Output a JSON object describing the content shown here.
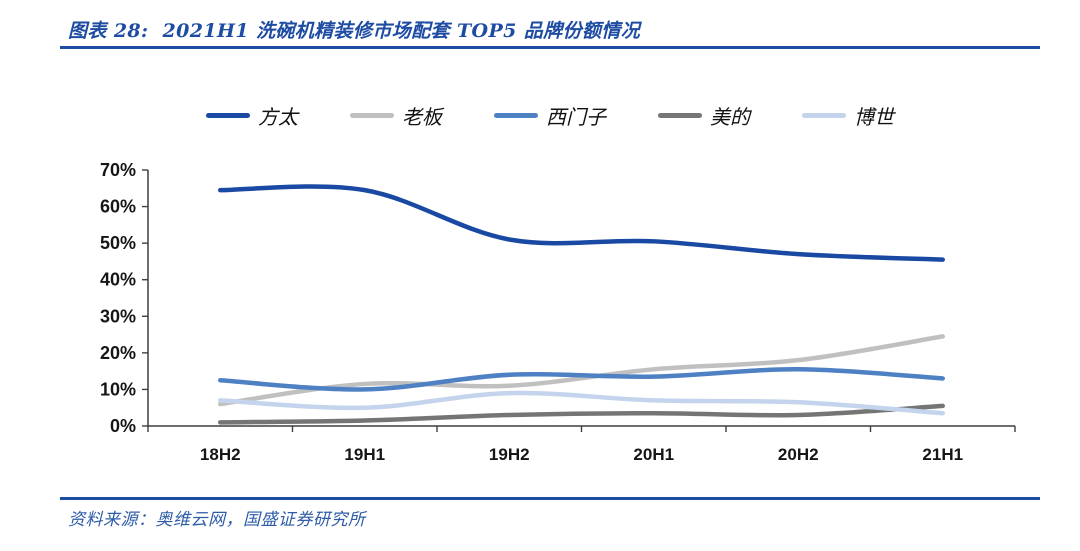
{
  "figure": {
    "label": "图表 28:",
    "title": "2021H1 洗碗机精装修市场配套 TOP5 品牌份额情况"
  },
  "footer": {
    "source": "资料来源：奥维云网，国盛证券研究所"
  },
  "colors": {
    "accent_navy": "#1F4CA3",
    "axis_line": "#3F3F3F",
    "tick_text": "#161616",
    "source_text": "#2E5CA8"
  },
  "chart_data": {
    "type": "line",
    "smooth": true,
    "title": "2021H1 洗碗机精装修市场配套 TOP5 品牌份额情况",
    "categories": [
      "18H2",
      "19H1",
      "19H2",
      "20H1",
      "20H2",
      "21H1"
    ],
    "series": [
      {
        "name": "方太",
        "color": "#1A49A3",
        "values": [
          64.5,
          64.5,
          51,
          50.5,
          47,
          45.5
        ]
      },
      {
        "name": "老板",
        "color": "#C0C0C0",
        "values": [
          6,
          11.5,
          11,
          15.5,
          18,
          24.5
        ]
      },
      {
        "name": "西门子",
        "color": "#4E80C4",
        "values": [
          12.5,
          10,
          14,
          13.5,
          15.5,
          13
        ]
      },
      {
        "name": "美的",
        "color": "#757575",
        "values": [
          1,
          1.5,
          3,
          3.5,
          3,
          5.5
        ]
      },
      {
        "name": "博世",
        "color": "#C3D4EC",
        "values": [
          7,
          5,
          9,
          7,
          6.5,
          3.5
        ]
      }
    ],
    "xlabel": "",
    "ylabel": "",
    "ylim": [
      0,
      70
    ],
    "ytick_step": 10,
    "ytick_format": "percent",
    "ytick_labels": [
      "0%",
      "10%",
      "20%",
      "30%",
      "40%",
      "50%",
      "60%",
      "70%"
    ],
    "legend_position": "top",
    "grid": false
  }
}
